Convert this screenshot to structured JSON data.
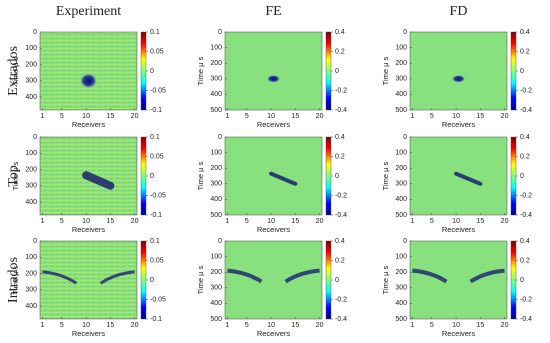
{
  "columns": [
    "Experiment",
    "FE",
    "FD"
  ],
  "rows": [
    "Extrados",
    "Top",
    "Intrados"
  ],
  "x_label": "Receivers",
  "y_label": "Time μ s",
  "experiment_axes": {
    "xticks": [
      1,
      5,
      10,
      15,
      20
    ],
    "yticks": [
      0,
      100,
      200,
      300,
      400
    ],
    "colorbar_ticks": [
      0.1,
      0.05,
      0,
      -0.05,
      -0.1
    ]
  },
  "simulation_axes": {
    "xticks": [
      1,
      5,
      10,
      15,
      20
    ],
    "yticks": [
      0,
      100,
      200,
      300,
      400,
      500
    ],
    "colorbar_ticks": [
      0.4,
      0.2,
      0,
      -0.2,
      -0.4
    ]
  }
}
